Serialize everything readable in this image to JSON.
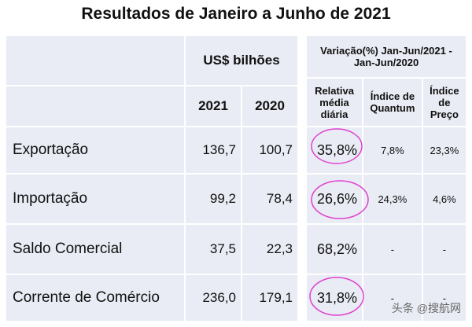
{
  "title": "Resultados de Janeiro a Junho de 2021",
  "left": {
    "unit": "US$ bilhões",
    "years": [
      "2021",
      "2020"
    ],
    "rows": [
      {
        "label": "Exportação",
        "v2021": "136,7",
        "v2020": "100,7"
      },
      {
        "label": "Importação",
        "v2021": "99,2",
        "v2020": "78,4"
      },
      {
        "label": "Saldo Comercial",
        "v2021": "37,5",
        "v2020": "22,3"
      },
      {
        "label": "Corrente de Comércio",
        "v2021": "236,0",
        "v2020": "179,1"
      }
    ]
  },
  "right": {
    "header": "Variação(%) Jan-Jun/2021 - Jan-Jun/2020",
    "cols": [
      "Relativa média diária",
      "Índice de Quantum",
      "Índice de Preço"
    ],
    "rows": [
      [
        "35,8%",
        "7,8%",
        "23,3%"
      ],
      [
        "26,6%",
        "24,3%",
        "4,6%"
      ],
      [
        "68,2%",
        "-",
        "-"
      ],
      [
        "31,8%",
        "-",
        "-"
      ]
    ]
  },
  "annotation_color": "#e040d0",
  "watermark": "头条 @搜航网"
}
